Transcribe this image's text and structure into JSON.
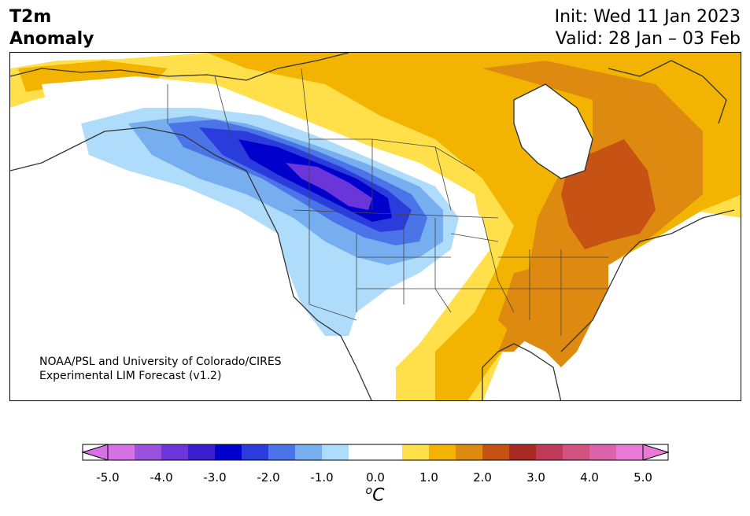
{
  "title": {
    "line1": "T2m",
    "line2": "Anomaly"
  },
  "forecast": {
    "init": "Init: Wed 11 Jan 2023",
    "valid": "Valid: 28 Jan – 03 Feb"
  },
  "credit": {
    "line1": "NOAA/PSL and University of Colorado/CIRES",
    "line2": "Experimental LIM Forecast (v1.2)"
  },
  "colorbar": {
    "unit_base": "C",
    "unit_sup": "o",
    "ticks": [
      "-5.0",
      "-4.0",
      "-3.0",
      "-2.0",
      "-1.0",
      "0.0",
      "1.0",
      "2.0",
      "3.0",
      "4.0",
      "5.0"
    ],
    "colors": [
      "#d772e6",
      "#9a52de",
      "#6a35d9",
      "#3a1ed0",
      "#0000cc",
      "#2a3cdc",
      "#4a74e8",
      "#76aef0",
      "#aedcfa",
      "#ffffff",
      "#ffffff",
      "#ffe04a",
      "#f2b400",
      "#de8a10",
      "#c65314",
      "#a82a25",
      "#c03a5a",
      "#d25280",
      "#dc62aa",
      "#e97ad8"
    ],
    "under_color": "#d772e6",
    "over_color": "#e97ad8"
  },
  "map_colors": {
    "deep_purple": "#6a35d9",
    "dark_blue": "#0000cc",
    "blue": "#2a3cdc",
    "mid_blue": "#4a74e8",
    "light_blue": "#76aef0",
    "pale_blue": "#aedcfa",
    "yellow": "#ffe04a",
    "gold": "#f2b400",
    "orange": "#de8a10",
    "rust": "#c65314",
    "coast": "#333333"
  }
}
